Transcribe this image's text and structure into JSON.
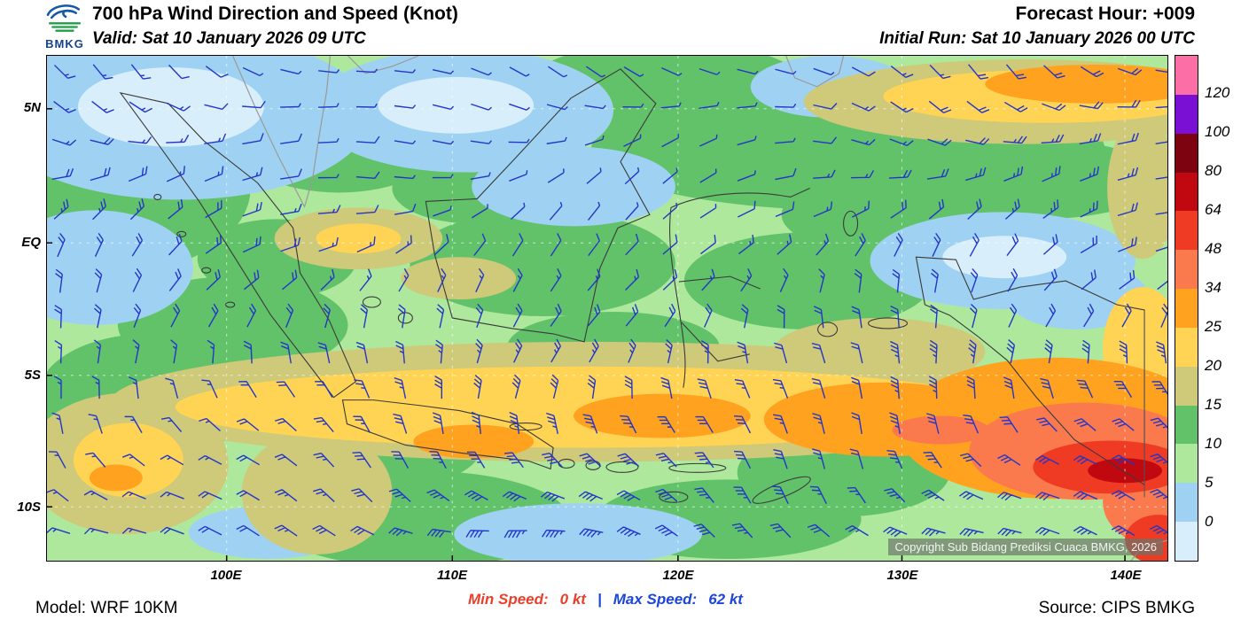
{
  "header": {
    "logo_text": "BMKG",
    "title": "700 hPa Wind Direction and Speed (Knot)",
    "valid_label": "Valid: Sat 10 January 2026 09 UTC",
    "forecast_hour": "Forecast Hour: +009",
    "initial_run": "Initial Run: Sat 10 January 2026 00 UTC"
  },
  "map": {
    "lat_labels": [
      "5N",
      "EQ",
      "5S",
      "10S"
    ],
    "lon_labels": [
      "100E",
      "110E",
      "120E",
      "130E",
      "140E"
    ],
    "copyright": "Copyright Sub Bidang Prediksi Cuaca BMKG, 2026"
  },
  "colorbar": {
    "tick_labels": [
      "120",
      "100",
      "80",
      "64",
      "48",
      "34",
      "25",
      "20",
      "15",
      "10",
      "5",
      "0"
    ],
    "segment_colors_top_to_bottom": [
      "#fb6ea6",
      "#7a10d4",
      "#7e0310",
      "#c00811",
      "#ef3b24",
      "#fa7a4e",
      "#ffa21f",
      "#ffd454",
      "#cfc97a",
      "#62c26a",
      "#aee89c",
      "#9fd2f2",
      "#d9eefb"
    ]
  },
  "footer": {
    "model": "Model: WRF 10KM",
    "min_speed_label": "Min Speed:",
    "min_speed_value": "0 kt",
    "separator": "|",
    "max_speed_label": "Max Speed:",
    "max_speed_value": "62 kt",
    "source": "Source: CIPS BMKG"
  },
  "chart_data": {
    "type": "heatmap",
    "title": "700 hPa Wind Direction and Speed (Knot)",
    "units": "knot",
    "x_ticks": [
      "100E",
      "110E",
      "120E",
      "130E",
      "140E"
    ],
    "y_ticks": [
      "5N",
      "EQ",
      "5S",
      "10S"
    ],
    "colorbar_levels_kt": [
      0,
      5,
      10,
      15,
      20,
      25,
      34,
      48,
      64,
      80,
      100,
      120
    ],
    "colorbar_colors_low_to_high": [
      "#d9eefb",
      "#9fd2f2",
      "#aee89c",
      "#62c26a",
      "#cfc97a",
      "#ffd454",
      "#ffa21f",
      "#fa7a4e",
      "#ef3b24",
      "#c00811",
      "#7e0310",
      "#7a10d4",
      "#fb6ea6"
    ],
    "min_speed_kt": 0,
    "max_speed_kt": 62,
    "legend_position": "right",
    "notes": "Filled contours of 700 hPa wind speed with blue wind barbs over the Indonesian region; lightest winds (0-5 kt) over northern Sumatra and north-central seas; yellow-orange band (20-35 kt) along 5S-8S; strongest winds (45-62 kt, red) over southern Papua and the far southeast."
  }
}
